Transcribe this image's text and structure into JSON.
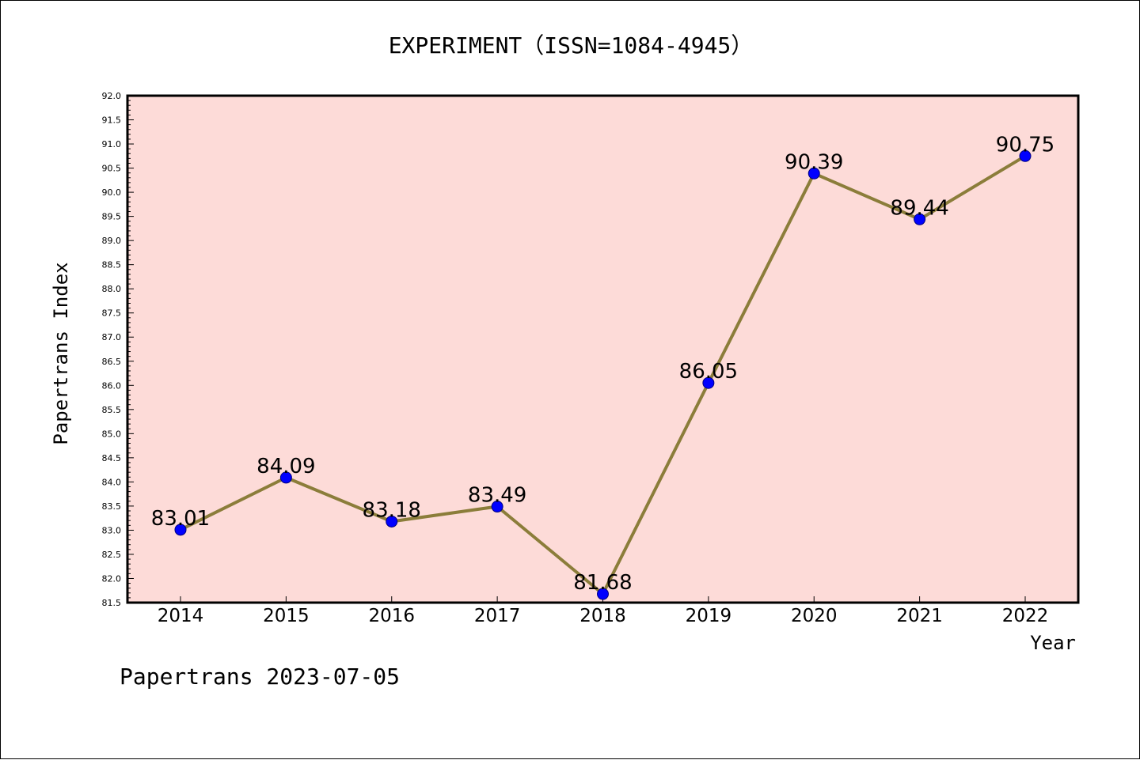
{
  "chart_data": {
    "type": "line",
    "title": "EXPERIMENT（ISSN=1084-4945）",
    "xlabel": "Year",
    "ylabel": "Papertrans Index",
    "categories": [
      "2014",
      "2015",
      "2016",
      "2017",
      "2018",
      "2019",
      "2020",
      "2021",
      "2022"
    ],
    "series": [
      {
        "values": [
          83.01,
          84.09,
          83.18,
          83.49,
          81.68,
          86.05,
          90.39,
          89.44,
          90.75
        ],
        "data_labels": [
          "83.01",
          "84.09",
          "83.18",
          "83.49",
          "81.68",
          "86.05",
          "90.39",
          "89.44",
          "90.75"
        ]
      }
    ],
    "ylim": [
      81.5,
      92.0
    ],
    "yticks": [
      "81.5",
      "82.0",
      "82.5",
      "83.0",
      "83.5",
      "84.0",
      "84.5",
      "85.0",
      "85.5",
      "86.0",
      "86.5",
      "87.0",
      "87.5",
      "88.0",
      "88.5",
      "89.0",
      "89.5",
      "90.0",
      "90.5",
      "91.0",
      "91.5",
      "92.0"
    ],
    "grid": false,
    "colors": {
      "plot_background": "#fddbd8",
      "line": "#8b7d3a",
      "marker": "#0000ff"
    }
  },
  "footer": "Papertrans 2023-07-05"
}
